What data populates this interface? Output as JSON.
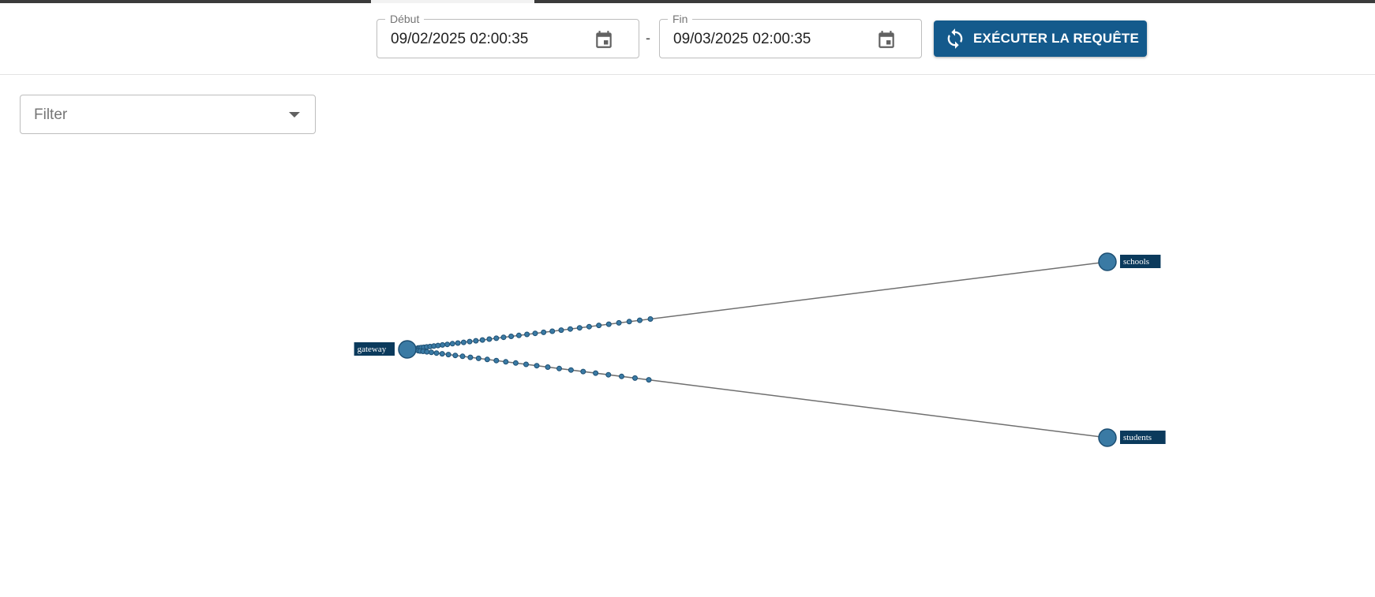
{
  "toolbar": {
    "start": {
      "legend": "Début",
      "value": "09/02/2025 02:00:35",
      "icon": "calendar-icon"
    },
    "separator": "-",
    "end": {
      "legend": "Fin",
      "value": "09/03/2025 02:00:35",
      "icon": "calendar-icon"
    },
    "run_button": {
      "label": "EXÉCUTER LA REQUÊTE",
      "icon": "refresh-icon"
    }
  },
  "filter": {
    "placeholder": "Filter",
    "icon": "caret-down-icon"
  },
  "graph": {
    "nodes": [
      {
        "id": "gateway",
        "label": "gateway"
      },
      {
        "id": "schools",
        "label": "schools"
      },
      {
        "id": "students",
        "label": "students"
      }
    ],
    "edges": [
      {
        "from": "gateway",
        "to": "schools",
        "in_flight_requests": 35
      },
      {
        "from": "gateway",
        "to": "students",
        "in_flight_requests": 27
      }
    ]
  },
  "colors": {
    "primary": "#145a8c",
    "node_fill": "#3a7aa4",
    "node_stroke": "#1d4f73",
    "edge": "#6f6f6f",
    "label_bg": "#0b3a5c"
  }
}
